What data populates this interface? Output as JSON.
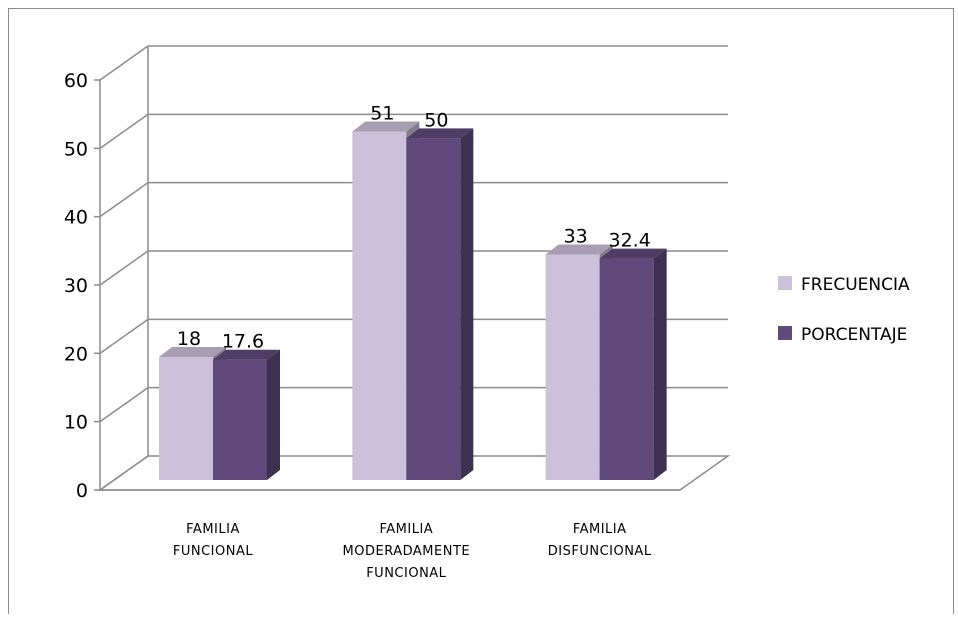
{
  "chart_data": {
    "type": "bar",
    "title": "",
    "xlabel": "",
    "ylabel": "",
    "ylim": [
      0,
      60
    ],
    "yticks": [
      0,
      10,
      20,
      30,
      40,
      50,
      60
    ],
    "grid": true,
    "legend_position": "right",
    "categories": [
      [
        "FAMILIA",
        "FUNCIONAL"
      ],
      [
        "FAMILIA",
        "MODERADAMENTE",
        "FUNCIONAL"
      ],
      [
        "FAMILIA",
        "DISFUNCIONAL"
      ]
    ],
    "series": [
      {
        "name": "FRECUENCIA",
        "values": [
          18,
          51,
          33
        ],
        "labels": [
          "18",
          "51",
          "33"
        ],
        "color": "#ccc1da"
      },
      {
        "name": "PORCENTAJE",
        "values": [
          17.6,
          50,
          32.4
        ],
        "labels": [
          "17.6",
          "50",
          "32.4"
        ],
        "color": "#604a7b"
      }
    ]
  }
}
